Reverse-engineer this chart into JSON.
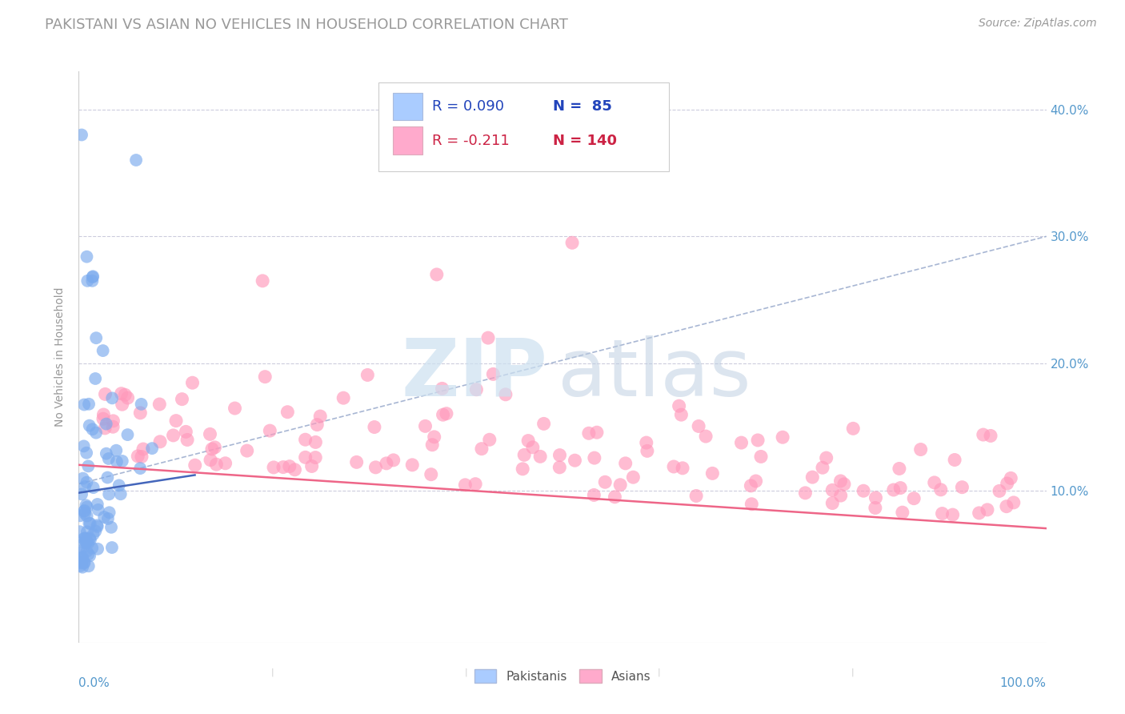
{
  "title": "PAKISTANI VS ASIAN NO VEHICLES IN HOUSEHOLD CORRELATION CHART",
  "source": "Source: ZipAtlas.com",
  "ylabel": "No Vehicles in Household",
  "x_lim": [
    0.0,
    1.0
  ],
  "y_lim": [
    -0.02,
    0.43
  ],
  "r_pakistani": 0.09,
  "n_pakistani": 85,
  "r_asian": -0.211,
  "n_asian": 140,
  "legend_pakistani_color": "#aaccff",
  "legend_asian_color": "#ffaacc",
  "pakistani_color": "#7aaaee",
  "asian_color": "#ff99bb",
  "pakistani_trendline_color": "#4466bb",
  "asian_trendline_color": "#ee6688",
  "dashed_line_color": "#99aacc",
  "title_color": "#999999",
  "axis_label_color": "#5599cc",
  "title_fontsize": 13,
  "tick_fontsize": 11,
  "grid_color": "#ccccdd",
  "watermark_zip_color": "#cce0f0",
  "watermark_atlas_color": "#bbcce0"
}
